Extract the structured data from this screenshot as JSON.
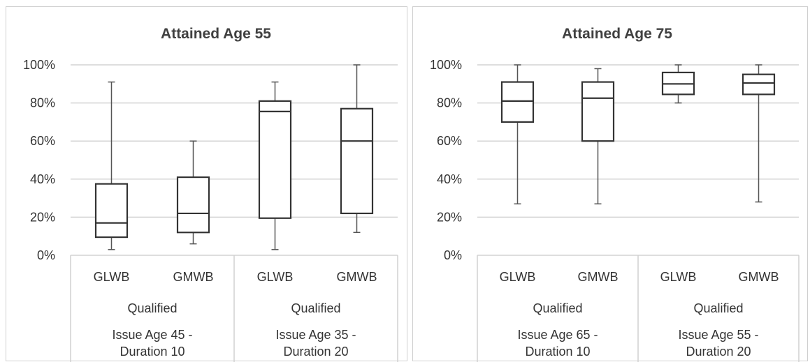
{
  "chart_data": [
    {
      "type": "box",
      "title": "Attained Age 55",
      "ylim": [
        0,
        100
      ],
      "y_ticks": [
        "0%",
        "20%",
        "40%",
        "60%",
        "80%",
        "100%"
      ],
      "grid": true,
      "groups": [
        {
          "label_line1": "Issue Age 45 -",
          "label_line2": "Duration 10",
          "subgroup": "Qualified",
          "boxes": [
            {
              "category": "GLWB",
              "min": 3,
              "q1": 9.5,
              "median": 17,
              "q3": 37.5,
              "max": 91
            },
            {
              "category": "GMWB",
              "min": 6,
              "q1": 12,
              "median": 22,
              "q3": 41,
              "max": 60
            }
          ]
        },
        {
          "label_line1": "Issue Age 35 -",
          "label_line2": "Duration 20",
          "subgroup": "Qualified",
          "boxes": [
            {
              "category": "GLWB",
              "min": 3,
              "q1": 19.5,
              "median": 75.5,
              "q3": 81,
              "max": 91
            },
            {
              "category": "GMWB",
              "min": 12,
              "q1": 22,
              "median": 60,
              "q3": 77,
              "max": 100
            }
          ]
        }
      ]
    },
    {
      "type": "box",
      "title": "Attained Age 75",
      "ylim": [
        0,
        100
      ],
      "y_ticks": [
        "0%",
        "20%",
        "40%",
        "60%",
        "80%",
        "100%"
      ],
      "grid": true,
      "groups": [
        {
          "label_line1": "Issue Age 65 -",
          "label_line2": "Duration 10",
          "subgroup": "Qualified",
          "boxes": [
            {
              "category": "GLWB",
              "min": 27,
              "q1": 70,
              "median": 81,
              "q3": 91,
              "max": 100
            },
            {
              "category": "GMWB",
              "min": 27,
              "q1": 60,
              "median": 82.5,
              "q3": 91,
              "max": 98
            }
          ]
        },
        {
          "label_line1": "Issue Age 55 -",
          "label_line2": "Duration 20",
          "subgroup": "Qualified",
          "boxes": [
            {
              "category": "GLWB",
              "min": 80,
              "q1": 84.5,
              "median": 90,
              "q3": 96,
              "max": 100
            },
            {
              "category": "GMWB",
              "min": 28,
              "q1": 84.5,
              "median": 90.5,
              "q3": 95,
              "max": 100
            }
          ]
        }
      ]
    }
  ]
}
